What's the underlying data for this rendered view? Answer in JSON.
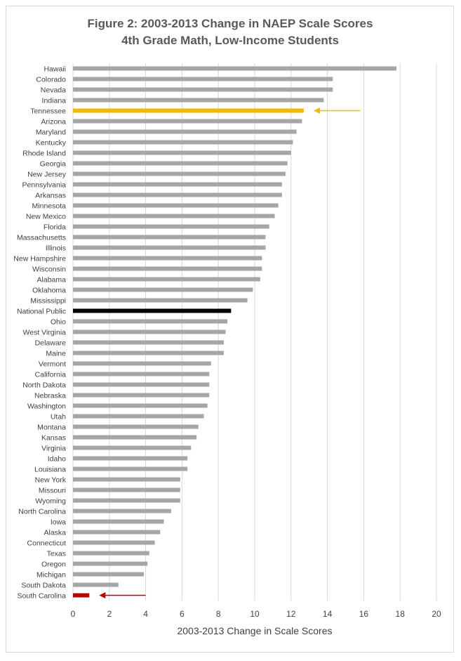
{
  "chart_data": {
    "type": "bar",
    "orientation": "horizontal",
    "title": "Figure 2: 2003-2013 Change in NAEP Scale Scores",
    "subtitle": "4th Grade Math, Low-Income Students",
    "xlabel": "2003-2013 Change in Scale Scores",
    "ylabel": "",
    "xlim": [
      0,
      20
    ],
    "xticks": [
      "0",
      "2",
      "4",
      "6",
      "8",
      "10",
      "12",
      "14",
      "16",
      "18",
      "20"
    ],
    "grid": "vertical",
    "legend": "none",
    "categories": [
      "Hawaii",
      "Colorado",
      "Nevada",
      "Indiana",
      "Tennessee",
      "Arizona",
      "Maryland",
      "Kentucky",
      "Rhode Island",
      "Georgia",
      "New Jersey",
      "Pennsylvania",
      "Arkansas",
      "Minnesota",
      "New Mexico",
      "Florida",
      "Massachusetts",
      "Illinois",
      "New Hampshire",
      "Wisconsin",
      "Alabama",
      "Oklahoma",
      "Mississippi",
      "National Public",
      "Ohio",
      "West Virginia",
      "Delaware",
      "Maine",
      "Vermont",
      "California",
      "North Dakota",
      "Nebraska",
      "Washington",
      "Utah",
      "Montana",
      "Kansas",
      "Virginia",
      "Idaho",
      "Louisiana",
      "New York",
      "Missouri",
      "Wyoming",
      "North Carolina",
      "Iowa",
      "Alaska",
      "Connecticut",
      "Texas",
      "Oregon",
      "Michigan",
      "South Dakota",
      "South Carolina"
    ],
    "values": [
      17.8,
      14.3,
      14.3,
      13.8,
      12.7,
      12.6,
      12.3,
      12.1,
      12.0,
      11.8,
      11.7,
      11.5,
      11.5,
      11.3,
      11.1,
      10.8,
      10.6,
      10.6,
      10.4,
      10.4,
      10.3,
      9.9,
      9.6,
      8.7,
      8.5,
      8.4,
      8.3,
      8.3,
      7.6,
      7.5,
      7.5,
      7.5,
      7.4,
      7.2,
      6.9,
      6.8,
      6.5,
      6.3,
      6.3,
      5.9,
      5.9,
      5.9,
      5.4,
      5.0,
      4.8,
      4.5,
      4.2,
      4.1,
      3.9,
      2.5,
      0.9
    ],
    "highlights": {
      "Tennessee": {
        "color": "#f5b800",
        "arrow_from": 15.8
      },
      "National Public": {
        "color": "#000000"
      },
      "South Carolina": {
        "color": "#c00000",
        "arrow_from": 4.0
      }
    },
    "bar_color": "#a6a6a6",
    "grid_color": "#d9d9d9"
  }
}
